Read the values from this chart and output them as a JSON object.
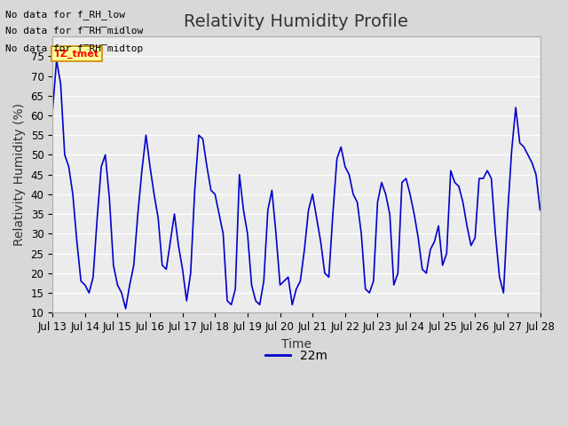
{
  "title": "Relativity Humidity Profile",
  "xlabel": "Time",
  "ylabel": "Relativity Humidity (%)",
  "legend_label": "22m",
  "ylim": [
    10,
    80
  ],
  "yticks": [
    10,
    15,
    20,
    25,
    30,
    35,
    40,
    45,
    50,
    55,
    60,
    65,
    70,
    75
  ],
  "xtick_labels": [
    "Jul 13",
    "Jul 14",
    "Jul 15",
    "Jul 16",
    "Jul 17",
    "Jul 18",
    "Jul 19",
    "Jul 20",
    "Jul 21",
    "Jul 22",
    "Jul 23",
    "Jul 24",
    "Jul 25",
    "Jul 26",
    "Jul 27",
    "Jul 28"
  ],
  "no_data_texts": [
    "No data for f_RH_low",
    "No data for f̅RH̅midlow",
    "No data for f̅RH̅midtop"
  ],
  "tz_tmet_label": "TZ_tmet",
  "line_color": "#0000cc",
  "legend_line_color": "#0000cc",
  "bg_color": "#e8e8e8",
  "plot_bg_color": "#f0f0f0",
  "grid_color": "#ffffff",
  "title_fontsize": 14,
  "axis_label_fontsize": 10,
  "tick_fontsize": 8.5,
  "data_x": [
    0.0,
    0.125,
    0.25,
    0.375,
    0.5,
    0.625,
    0.75,
    0.875,
    1.0,
    1.125,
    1.25,
    1.375,
    1.5,
    1.625,
    1.75,
    1.875,
    2.0,
    2.125,
    2.25,
    2.375,
    2.5,
    2.625,
    2.75,
    2.875,
    3.0,
    3.125,
    3.25,
    3.375,
    3.5,
    3.625,
    3.75,
    3.875,
    4.0,
    4.125,
    4.25,
    4.375,
    4.5,
    4.625,
    4.75,
    4.875,
    5.0,
    5.125,
    5.25,
    5.375,
    5.5,
    5.625,
    5.75,
    5.875,
    6.0,
    6.125,
    6.25,
    6.375,
    6.5,
    6.625,
    6.75,
    6.875,
    7.0,
    7.125,
    7.25,
    7.375,
    7.5,
    7.625,
    7.75,
    7.875,
    8.0,
    8.125,
    8.25,
    8.375,
    8.5,
    8.625,
    8.75,
    8.875,
    9.0,
    9.125,
    9.25,
    9.375,
    9.5,
    9.625,
    9.75,
    9.875,
    10.0,
    10.125,
    10.25,
    10.375,
    10.5,
    10.625,
    10.75,
    10.875,
    11.0,
    11.125,
    11.25,
    11.375,
    11.5,
    11.625,
    11.75,
    11.875,
    12.0,
    12.125,
    12.25,
    12.375,
    12.5,
    12.625,
    12.75,
    12.875,
    13.0,
    13.125,
    13.25,
    13.375,
    13.5,
    13.625,
    13.75,
    13.875,
    14.0,
    14.125,
    14.25,
    14.375,
    14.5,
    14.625,
    14.75,
    14.875,
    15.0
  ],
  "data_y": [
    61,
    74,
    68,
    50,
    47,
    40,
    28,
    18,
    17,
    15,
    19,
    34,
    47,
    50,
    39,
    22,
    17,
    15,
    11,
    17,
    22,
    35,
    46,
    55,
    47,
    40,
    34,
    22,
    21,
    28,
    35,
    27,
    21,
    13,
    20,
    41,
    55,
    54,
    47,
    41,
    40,
    35,
    30,
    13,
    12,
    16,
    45,
    36,
    30,
    17,
    13,
    12,
    18,
    36,
    41,
    30,
    17,
    18,
    19,
    12,
    16,
    18,
    26,
    36,
    40,
    34,
    28,
    20,
    19,
    35,
    49,
    52,
    47,
    45,
    40,
    38,
    30,
    16,
    15,
    18,
    38,
    43,
    40,
    35,
    17,
    20,
    43,
    44,
    40,
    35,
    29,
    21,
    20,
    26,
    28,
    32,
    22,
    25,
    46,
    43,
    42,
    38,
    32,
    27,
    29,
    44,
    44,
    46,
    44,
    30,
    19,
    15,
    35,
    51,
    62,
    53,
    52,
    50,
    48,
    45,
    36
  ]
}
